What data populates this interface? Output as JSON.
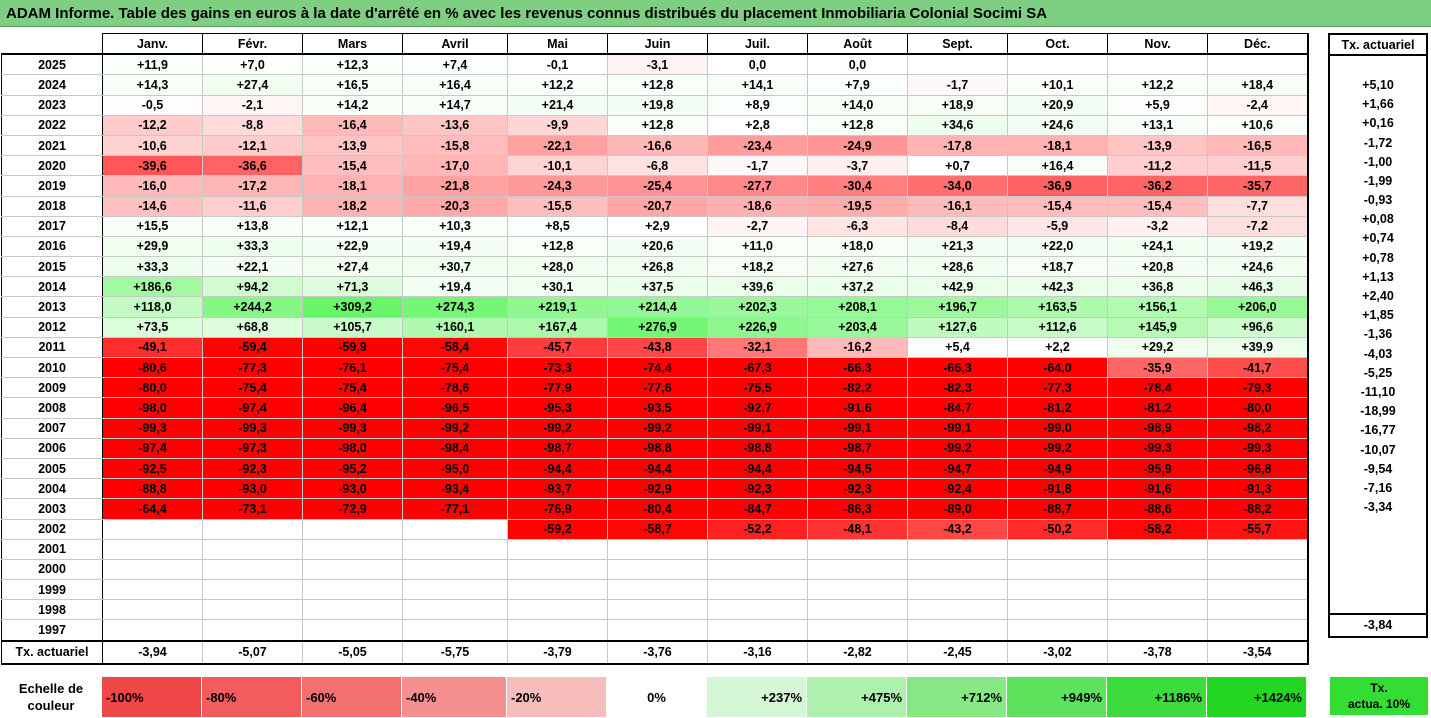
{
  "title": "ADAM Informe. Table des gains en euros à la date d'arrêté en % avec les revenus connus distribués du placement Inmobiliaria Colonial Socimi SA",
  "months": [
    "Janv.",
    "Févr.",
    "Mars",
    "Avril",
    "Mai",
    "Juin",
    "Juil.",
    "Août",
    "Sept.",
    "Oct.",
    "Nov.",
    "Déc."
  ],
  "side_header": "Tx. actuariel",
  "rows": [
    {
      "year": "2025",
      "cells": [
        "+11,9",
        "+7,0",
        "+12,3",
        "+7,4",
        "-0,1",
        "-3,1",
        "0,0",
        "0,0",
        "",
        "",
        "",
        ""
      ],
      "rate": ""
    },
    {
      "year": "2024",
      "cells": [
        "+14,3",
        "+27,4",
        "+16,5",
        "+16,4",
        "+12,2",
        "+12,8",
        "+14,1",
        "+7,9",
        "-1,7",
        "+10,1",
        "+12,2",
        "+18,4"
      ],
      "rate": "+5,10"
    },
    {
      "year": "2023",
      "cells": [
        "-0,5",
        "-2,1",
        "+14,2",
        "+14,7",
        "+21,4",
        "+19,8",
        "+8,9",
        "+14,0",
        "+18,9",
        "+20,9",
        "+5,9",
        "-2,4"
      ],
      "rate": "+1,66"
    },
    {
      "year": "2022",
      "cells": [
        "-12,2",
        "-8,8",
        "-16,4",
        "-13,6",
        "-9,9",
        "+12,8",
        "+2,8",
        "+12,8",
        "+34,6",
        "+24,6",
        "+13,1",
        "+10,6"
      ],
      "rate": "+0,16"
    },
    {
      "year": "2021",
      "cells": [
        "-10,6",
        "-12,1",
        "-13,9",
        "-15,8",
        "-22,1",
        "-16,6",
        "-23,4",
        "-24,9",
        "-17,8",
        "-18,1",
        "-13,9",
        "-16,5"
      ],
      "rate": "-1,72"
    },
    {
      "year": "2020",
      "cells": [
        "-39,6",
        "-36,6",
        "-15,4",
        "-17,0",
        "-10,1",
        "-6,8",
        "-1,7",
        "-3,7",
        "+0,7",
        "+16,4",
        "-11,2",
        "-11,5"
      ],
      "rate": "-1,00"
    },
    {
      "year": "2019",
      "cells": [
        "-16,0",
        "-17,2",
        "-18,1",
        "-21,8",
        "-24,3",
        "-25,4",
        "-27,7",
        "-30,4",
        "-34,0",
        "-36,9",
        "-36,2",
        "-35,7"
      ],
      "rate": "-1,99"
    },
    {
      "year": "2018",
      "cells": [
        "-14,6",
        "-11,6",
        "-18,2",
        "-20,3",
        "-15,5",
        "-20,7",
        "-18,6",
        "-19,5",
        "-16,1",
        "-15,4",
        "-15,4",
        "-7,7"
      ],
      "rate": "-0,93"
    },
    {
      "year": "2017",
      "cells": [
        "+15,5",
        "+13,8",
        "+12,1",
        "+10,3",
        "+8,5",
        "+2,9",
        "-2,7",
        "-6,3",
        "-8,4",
        "-5,9",
        "-3,2",
        "-7,2"
      ],
      "rate": "+0,08"
    },
    {
      "year": "2016",
      "cells": [
        "+29,9",
        "+33,3",
        "+22,9",
        "+19,4",
        "+12,8",
        "+20,6",
        "+11,0",
        "+18,0",
        "+21,3",
        "+22,0",
        "+24,1",
        "+19,2"
      ],
      "rate": "+0,74"
    },
    {
      "year": "2015",
      "cells": [
        "+33,3",
        "+22,1",
        "+27,4",
        "+30,7",
        "+28,0",
        "+26,8",
        "+18,2",
        "+27,6",
        "+28,6",
        "+18,7",
        "+20,8",
        "+24,6"
      ],
      "rate": "+0,78"
    },
    {
      "year": "2014",
      "cells": [
        "+186,6",
        "+94,2",
        "+71,3",
        "+19,4",
        "+30,1",
        "+37,5",
        "+39,6",
        "+37,2",
        "+42,9",
        "+42,3",
        "+36,8",
        "+46,3"
      ],
      "rate": "+1,13"
    },
    {
      "year": "2013",
      "cells": [
        "+118,0",
        "+244,2",
        "+309,2",
        "+274,3",
        "+219,1",
        "+214,4",
        "+202,3",
        "+208,1",
        "+196,7",
        "+163,5",
        "+156,1",
        "+206,0"
      ],
      "rate": "+2,40"
    },
    {
      "year": "2012",
      "cells": [
        "+73,5",
        "+68,8",
        "+105,7",
        "+160,1",
        "+167,4",
        "+276,9",
        "+226,9",
        "+203,4",
        "+127,6",
        "+112,6",
        "+145,9",
        "+96,6"
      ],
      "rate": "+1,85"
    },
    {
      "year": "2011",
      "cells": [
        "-49,1",
        "-59,4",
        "-59,9",
        "-58,4",
        "-45,7",
        "-43,8",
        "-32,1",
        "-16,2",
        "+5,4",
        "+2,2",
        "+29,2",
        "+39,9"
      ],
      "rate": "-1,36"
    },
    {
      "year": "2010",
      "cells": [
        "-80,6",
        "-77,3",
        "-76,1",
        "-75,4",
        "-73,3",
        "-74,4",
        "-67,3",
        "-66,3",
        "-66,3",
        "-64,0",
        "-35,9",
        "-41,7"
      ],
      "rate": "-4,03"
    },
    {
      "year": "2009",
      "cells": [
        "-80,0",
        "-75,4",
        "-75,4",
        "-78,6",
        "-77,9",
        "-77,6",
        "-75,5",
        "-82,2",
        "-82,3",
        "-77,3",
        "-78,4",
        "-79,3"
      ],
      "rate": "-5,25"
    },
    {
      "year": "2008",
      "cells": [
        "-98,0",
        "-97,4",
        "-96,4",
        "-96,5",
        "-95,3",
        "-93,5",
        "-92,7",
        "-91,6",
        "-84,7",
        "-81,2",
        "-81,2",
        "-80,0"
      ],
      "rate": "-11,10"
    },
    {
      "year": "2007",
      "cells": [
        "-99,3",
        "-99,3",
        "-99,3",
        "-99,2",
        "-99,2",
        "-99,2",
        "-99,1",
        "-99,1",
        "-99,1",
        "-99,0",
        "-98,9",
        "-98,2"
      ],
      "rate": "-18,99"
    },
    {
      "year": "2006",
      "cells": [
        "-97,4",
        "-97,3",
        "-98,0",
        "-98,4",
        "-98,7",
        "-98,8",
        "-98,8",
        "-98,7",
        "-99,2",
        "-99,2",
        "-99,3",
        "-99,3"
      ],
      "rate": "-16,77"
    },
    {
      "year": "2005",
      "cells": [
        "-92,5",
        "-92,3",
        "-95,2",
        "-95,0",
        "-94,4",
        "-94,4",
        "-94,4",
        "-94,5",
        "-94,7",
        "-94,9",
        "-95,9",
        "-96,8"
      ],
      "rate": "-10,07"
    },
    {
      "year": "2004",
      "cells": [
        "-88,8",
        "-93,0",
        "-93,0",
        "-93,4",
        "-93,7",
        "-92,9",
        "-92,3",
        "-92,3",
        "-92,4",
        "-91,8",
        "-91,6",
        "-91,3"
      ],
      "rate": "-9,54"
    },
    {
      "year": "2003",
      "cells": [
        "-64,4",
        "-73,1",
        "-72,9",
        "-77,1",
        "-76,9",
        "-80,4",
        "-84,7",
        "-86,3",
        "-89,0",
        "-88,7",
        "-88,6",
        "-88,2"
      ],
      "rate": "-7,16"
    },
    {
      "year": "2002",
      "cells": [
        "",
        "",
        "",
        "",
        "-59,2",
        "-58,7",
        "-52,2",
        "-48,1",
        "-43,2",
        "-50,2",
        "-58,2",
        "-55,7"
      ],
      "rate": "-3,34"
    },
    {
      "year": "2001",
      "cells": [
        "",
        "",
        "",
        "",
        "",
        "",
        "",
        "",
        "",
        "",
        "",
        ""
      ],
      "rate": ""
    },
    {
      "year": "2000",
      "cells": [
        "",
        "",
        "",
        "",
        "",
        "",
        "",
        "",
        "",
        "",
        "",
        ""
      ],
      "rate": ""
    },
    {
      "year": "1999",
      "cells": [
        "",
        "",
        "",
        "",
        "",
        "",
        "",
        "",
        "",
        "",
        "",
        ""
      ],
      "rate": ""
    },
    {
      "year": "1998",
      "cells": [
        "",
        "",
        "",
        "",
        "",
        "",
        "",
        "",
        "",
        "",
        "",
        ""
      ],
      "rate": ""
    },
    {
      "year": "1997",
      "cells": [
        "",
        "",
        "",
        "",
        "",
        "",
        "",
        "",
        "",
        "",
        "",
        ""
      ],
      "rate": ""
    }
  ],
  "footer": {
    "label": "Tx. actuariel",
    "values": [
      "-3,94",
      "-5,07",
      "-5,05",
      "-5,75",
      "-3,79",
      "-3,76",
      "-3,16",
      "-2,82",
      "-2,45",
      "-3,02",
      "-3,78",
      "-3,54"
    ],
    "total": "-3,84"
  },
  "legend": {
    "label_line1": "Echelle de",
    "label_line2": "couleur",
    "items": [
      "-100%",
      "-80%",
      "-60%",
      "-40%",
      "-20%",
      "0%",
      "+237%",
      "+475%",
      "+712%",
      "+949%",
      "+1186%",
      "+1424%"
    ],
    "colors": [
      "#f04848",
      "#f25c5c",
      "#f37070",
      "#f69090",
      "#f9bcbc",
      "#ffffff",
      "#d6f7d6",
      "#aef0ae",
      "#86e986",
      "#5ee25e",
      "#3cdc3c",
      "#22d622"
    ],
    "side_line1": "Tx.",
    "side_line2": "actua. 10%"
  },
  "colors": {
    "title_bg": "#7fcf82",
    "negative_max": "#ff0000",
    "positive_max": "#00cc00",
    "side_legend_bg": "#33dd33"
  }
}
